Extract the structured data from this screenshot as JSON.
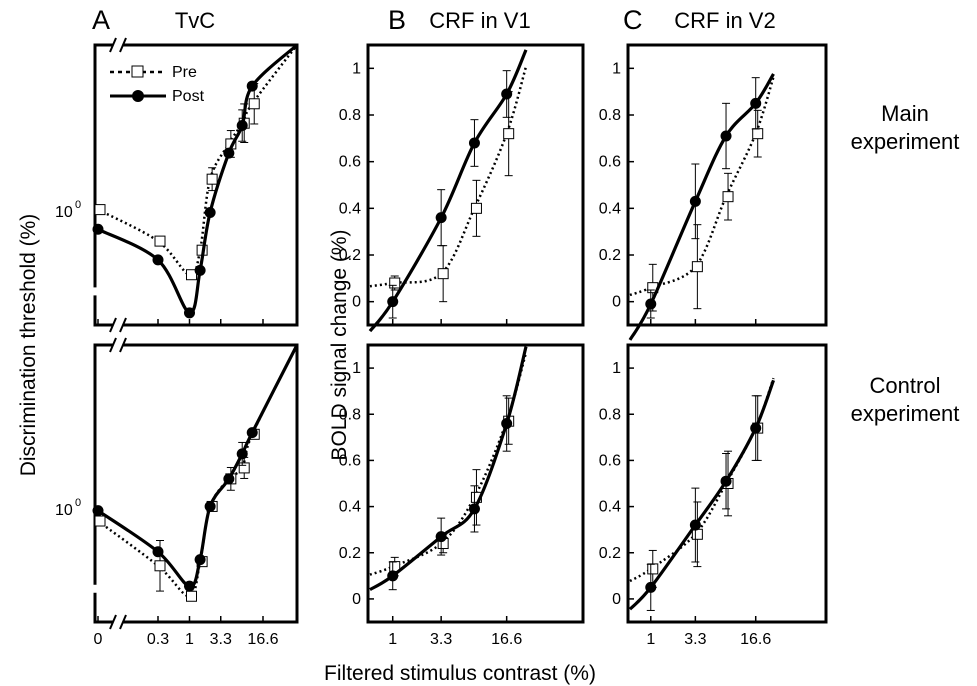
{
  "figure": {
    "xlabel": "Filtered stimulus contrast (%)",
    "ylabel_tvc": "Discrimination threshold (%)",
    "ylabel_crf": "BOLD signal change (%)",
    "row_labels": [
      {
        "line1": "Main",
        "line2": "experiment"
      },
      {
        "line1": "Control",
        "line2": "experiment"
      }
    ],
    "columns": [
      {
        "letter": "A",
        "title": "TvC"
      },
      {
        "letter": "B",
        "title": "CRF in V1"
      },
      {
        "letter": "C",
        "title": "CRF in V2"
      }
    ],
    "legend": {
      "pre": "Pre",
      "post": "Post"
    },
    "tvc_xticks": [
      "0",
      "0.3",
      "1",
      "3.3",
      "16.6"
    ],
    "crf_xticks": [
      "1",
      "3.3",
      "16.6"
    ],
    "tvc_ytick": "10",
    "tvc_ytick_exp": "0",
    "crf_yticks": [
      "0",
      "0.2",
      "0.4",
      "0.6",
      "0.8",
      "1"
    ]
  },
  "colors": {
    "line": "#000000",
    "marker_open": "#ffffff",
    "marker_filled": "#000000"
  },
  "chart_data": [
    {
      "id": "tvc-main",
      "type": "line",
      "title": "TvC",
      "xlabel": "Filtered stimulus contrast (%)",
      "ylabel": "Discrimination threshold (%)",
      "xscale": "log",
      "yscale": "log",
      "ylim": [
        0.45,
        3.2
      ],
      "x": [
        0,
        0.3,
        1,
        1.5,
        2.2,
        4.5,
        7.5,
        11
      ],
      "series": [
        {
          "name": "Pre",
          "marker": "open-square",
          "line": "dotted",
          "values": [
            1.01,
            0.81,
            0.64,
            0.76,
            1.25,
            1.6,
            1.85,
            2.12
          ],
          "errors": [
            0,
            0,
            0,
            0,
            0.1,
            0.15,
            0.25,
            0.3
          ]
        },
        {
          "name": "Post",
          "marker": "filled-circle",
          "line": "solid",
          "values": [
            0.88,
            0.71,
            0.49,
            0.66,
            0.99,
            1.5,
            1.82,
            2.4
          ],
          "errors": [
            0,
            0,
            0,
            0,
            0,
            0,
            0.2,
            0
          ]
        }
      ]
    },
    {
      "id": "tvc-control",
      "type": "line",
      "title": "",
      "xlabel": "Filtered stimulus contrast (%)",
      "ylabel": "Discrimination threshold (%)",
      "xscale": "log",
      "yscale": "log",
      "ylim": [
        0.45,
        3.2
      ],
      "x": [
        0,
        0.3,
        1,
        1.5,
        2.2,
        4.5,
        7.5,
        11
      ],
      "series": [
        {
          "name": "Pre",
          "marker": "open-square",
          "line": "dotted",
          "values": [
            0.92,
            0.67,
            0.54,
            0.69,
            1.02,
            1.24,
            1.34,
            1.7
          ],
          "errors": [
            0,
            0.12,
            0,
            0,
            0,
            0.1,
            0.1,
            0
          ]
        },
        {
          "name": "Post",
          "marker": "filled-circle",
          "line": "solid",
          "values": [
            0.99,
            0.74,
            0.58,
            0.7,
            1.02,
            1.24,
            1.48,
            1.72
          ],
          "errors": [
            0,
            0,
            0,
            0,
            0,
            0,
            0.12,
            0
          ]
        }
      ]
    },
    {
      "id": "crf-v1-main",
      "type": "line",
      "title": "CRF in V1",
      "xlabel": "Filtered stimulus contrast (%)",
      "ylabel": "BOLD signal change (%)",
      "xscale": "log",
      "ylim": [
        -0.1,
        1.1
      ],
      "x": [
        1,
        3.3,
        7.5,
        16.6
      ],
      "series": [
        {
          "name": "Pre",
          "marker": "open-square",
          "line": "dotted",
          "values": [
            0.08,
            0.12,
            0.4,
            0.72
          ],
          "errors": [
            0.03,
            0.12,
            0.12,
            0.18
          ]
        },
        {
          "name": "Post",
          "marker": "filled-circle",
          "line": "solid",
          "values": [
            0.0,
            0.36,
            0.68,
            0.89
          ],
          "errors": [
            0.07,
            0.12,
            0.1,
            0.1
          ]
        }
      ]
    },
    {
      "id": "crf-v1-control",
      "type": "line",
      "title": "",
      "xlabel": "Filtered stimulus contrast (%)",
      "ylabel": "BOLD signal change (%)",
      "xscale": "log",
      "ylim": [
        -0.1,
        1.1
      ],
      "x": [
        1,
        3.3,
        7.5,
        16.6
      ],
      "series": [
        {
          "name": "Pre",
          "marker": "open-square",
          "line": "dotted",
          "values": [
            0.14,
            0.24,
            0.44,
            0.77
          ],
          "errors": [
            0.04,
            0.04,
            0.12,
            0.1
          ]
        },
        {
          "name": "Post",
          "marker": "filled-circle",
          "line": "solid",
          "values": [
            0.1,
            0.27,
            0.39,
            0.76
          ],
          "errors": [
            0.06,
            0.08,
            0.1,
            0.12
          ]
        }
      ]
    },
    {
      "id": "crf-v2-main",
      "type": "line",
      "title": "CRF in V2",
      "xlabel": "Filtered stimulus contrast (%)",
      "ylabel": "BOLD signal change (%)",
      "xscale": "log",
      "ylim": [
        -0.1,
        1.1
      ],
      "x": [
        1,
        3.3,
        7.5,
        16.6
      ],
      "series": [
        {
          "name": "Pre",
          "marker": "open-square",
          "line": "dotted",
          "values": [
            0.06,
            0.15,
            0.45,
            0.72
          ],
          "errors": [
            0.1,
            0.18,
            0.1,
            0.1
          ]
        },
        {
          "name": "Post",
          "marker": "filled-circle",
          "line": "solid",
          "values": [
            -0.01,
            0.43,
            0.71,
            0.85
          ],
          "errors": [
            0.06,
            0.16,
            0.14,
            0.11
          ]
        }
      ]
    },
    {
      "id": "crf-v2-control",
      "type": "line",
      "title": "",
      "xlabel": "Filtered stimulus contrast (%)",
      "ylabel": "BOLD signal change (%)",
      "xscale": "log",
      "ylim": [
        -0.1,
        1.1
      ],
      "x": [
        1,
        3.3,
        7.5,
        16.6
      ],
      "series": [
        {
          "name": "Pre",
          "marker": "open-square",
          "line": "dotted",
          "values": [
            0.13,
            0.28,
            0.5,
            0.74
          ],
          "errors": [
            0.08,
            0.14,
            0.14,
            0.14
          ]
        },
        {
          "name": "Post",
          "marker": "filled-circle",
          "line": "solid",
          "values": [
            0.05,
            0.32,
            0.51,
            0.74
          ],
          "errors": [
            0.1,
            0.16,
            0.12,
            0.14
          ]
        }
      ]
    }
  ]
}
